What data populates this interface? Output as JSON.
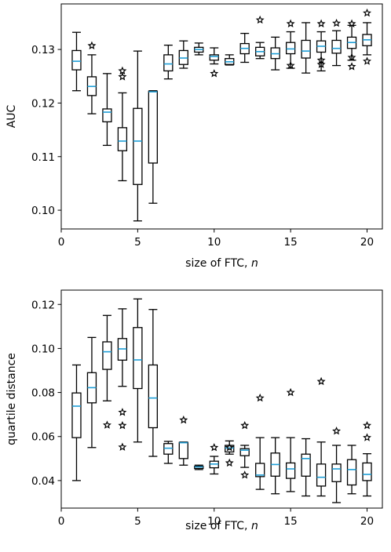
{
  "chart_data": [
    {
      "type": "box",
      "xlabel": "size of FTC, ",
      "xlabel_var": "n",
      "ylabel": "AUC",
      "xlim": [
        0,
        21
      ],
      "ylim": [
        0.0965,
        0.1385
      ],
      "xticks": [
        0,
        5,
        10,
        15,
        20
      ],
      "xticklabels": [
        "0",
        "5",
        "10",
        "15",
        "20"
      ],
      "yticks": [
        0.1,
        0.11,
        0.12,
        0.13
      ],
      "yticklabels": [
        "0.10",
        "0.11",
        "0.12",
        "0.13"
      ],
      "median_color": "#1f9ed6",
      "boxes": [
        {
          "x": 1,
          "whislo": 0.1223,
          "q1": 0.1262,
          "med": 0.1278,
          "q3": 0.1298,
          "whishi": 0.1332,
          "fliers": []
        },
        {
          "x": 2,
          "whislo": 0.118,
          "q1": 0.1214,
          "med": 0.1231,
          "q3": 0.1249,
          "whishi": 0.129,
          "fliers": [
            0.1307
          ]
        },
        {
          "x": 3,
          "whislo": 0.1121,
          "q1": 0.1165,
          "med": 0.1183,
          "q3": 0.1189,
          "whishi": 0.1255,
          "fliers": []
        },
        {
          "x": 4,
          "whislo": 0.1055,
          "q1": 0.1111,
          "med": 0.1129,
          "q3": 0.1154,
          "whishi": 0.1219,
          "fliers": [
            0.1249,
            0.126
          ]
        },
        {
          "x": 5,
          "whislo": 0.098,
          "q1": 0.1048,
          "med": 0.1129,
          "q3": 0.119,
          "whishi": 0.1297,
          "fliers": []
        },
        {
          "x": 6,
          "whislo": 0.1013,
          "q1": 0.1088,
          "med": 0.1221,
          "q3": 0.1222,
          "whishi": 0.1223,
          "fliers": []
        },
        {
          "x": 7,
          "whislo": 0.1245,
          "q1": 0.126,
          "med": 0.1273,
          "q3": 0.129,
          "whishi": 0.1308,
          "fliers": []
        },
        {
          "x": 8,
          "whislo": 0.1265,
          "q1": 0.1272,
          "med": 0.1284,
          "q3": 0.1298,
          "whishi": 0.1316,
          "fliers": []
        },
        {
          "x": 9,
          "whislo": 0.129,
          "q1": 0.1295,
          "med": 0.13,
          "q3": 0.1304,
          "whishi": 0.1312,
          "fliers": []
        },
        {
          "x": 10,
          "whislo": 0.1273,
          "q1": 0.128,
          "med": 0.1287,
          "q3": 0.129,
          "whishi": 0.1303,
          "fliers": [
            0.1255
          ]
        },
        {
          "x": 11,
          "whislo": 0.1271,
          "q1": 0.1272,
          "med": 0.1277,
          "q3": 0.1283,
          "whishi": 0.129,
          "fliers": []
        },
        {
          "x": 12,
          "whislo": 0.1276,
          "q1": 0.1292,
          "med": 0.1302,
          "q3": 0.1311,
          "whishi": 0.133,
          "fliers": []
        },
        {
          "x": 13,
          "whislo": 0.1283,
          "q1": 0.1288,
          "med": 0.1296,
          "q3": 0.1304,
          "whishi": 0.1313,
          "fliers": [
            0.1355
          ]
        },
        {
          "x": 14,
          "whislo": 0.1262,
          "q1": 0.1283,
          "med": 0.1292,
          "q3": 0.1303,
          "whishi": 0.1323,
          "fliers": []
        },
        {
          "x": 15,
          "whislo": 0.1265,
          "q1": 0.1292,
          "med": 0.1301,
          "q3": 0.1313,
          "whishi": 0.1333,
          "fliers": [
            0.1348,
            0.127
          ]
        },
        {
          "x": 16,
          "whislo": 0.1256,
          "q1": 0.1284,
          "med": 0.1297,
          "q3": 0.1317,
          "whishi": 0.135,
          "fliers": []
        },
        {
          "x": 17,
          "whislo": 0.126,
          "q1": 0.1295,
          "med": 0.1306,
          "q3": 0.1316,
          "whishi": 0.1333,
          "fliers": [
            0.1348,
            0.128,
            0.1272
          ]
        },
        {
          "x": 18,
          "whislo": 0.127,
          "q1": 0.1293,
          "med": 0.1302,
          "q3": 0.1317,
          "whishi": 0.1335,
          "fliers": [
            0.1349
          ]
        },
        {
          "x": 19,
          "whislo": 0.128,
          "q1": 0.1302,
          "med": 0.1313,
          "q3": 0.1323,
          "whishi": 0.1345,
          "fliers": [
            0.1348,
            0.1285,
            0.1268
          ]
        },
        {
          "x": 20,
          "whislo": 0.129,
          "q1": 0.1307,
          "med": 0.1318,
          "q3": 0.1328,
          "whishi": 0.135,
          "fliers": [
            0.1368,
            0.1278
          ]
        }
      ]
    },
    {
      "type": "box",
      "xlabel": "size of FTC, ",
      "xlabel_var": "n",
      "ylabel": "quartile distance",
      "xlim": [
        0,
        21
      ],
      "ylim": [
        0.0275,
        0.1265
      ],
      "xticks": [
        0,
        5,
        10,
        15,
        20
      ],
      "xticklabels": [
        "0",
        "5",
        "10",
        "15",
        "20"
      ],
      "yticks": [
        0.04,
        0.06,
        0.08,
        0.1,
        0.12
      ],
      "yticklabels": [
        "0.04",
        "0.06",
        "0.08",
        "0.10",
        "0.12"
      ],
      "median_color": "#1f9ed6",
      "boxes": [
        {
          "x": 1,
          "whislo": 0.04,
          "q1": 0.0595,
          "med": 0.0738,
          "q3": 0.0798,
          "whishi": 0.0925,
          "fliers": []
        },
        {
          "x": 2,
          "whislo": 0.055,
          "q1": 0.0753,
          "med": 0.0822,
          "q3": 0.089,
          "whishi": 0.105,
          "fliers": []
        },
        {
          "x": 3,
          "whislo": 0.0762,
          "q1": 0.0905,
          "med": 0.0985,
          "q3": 0.103,
          "whishi": 0.115,
          "fliers": [
            0.0652
          ]
        },
        {
          "x": 4,
          "whislo": 0.0828,
          "q1": 0.0947,
          "med": 0.0998,
          "q3": 0.1045,
          "whishi": 0.118,
          "fliers": [
            0.071,
            0.065,
            0.0552
          ]
        },
        {
          "x": 5,
          "whislo": 0.0575,
          "q1": 0.0818,
          "med": 0.0948,
          "q3": 0.1095,
          "whishi": 0.1225,
          "fliers": []
        },
        {
          "x": 6,
          "whislo": 0.051,
          "q1": 0.064,
          "med": 0.0775,
          "q3": 0.0925,
          "whishi": 0.1177,
          "fliers": []
        },
        {
          "x": 7,
          "whislo": 0.0478,
          "q1": 0.052,
          "med": 0.0547,
          "q3": 0.0568,
          "whishi": 0.0578,
          "fliers": []
        },
        {
          "x": 8,
          "whislo": 0.047,
          "q1": 0.05,
          "med": 0.0572,
          "q3": 0.0573,
          "whishi": 0.0575,
          "fliers": [
            0.0675
          ]
        },
        {
          "x": 9,
          "whislo": 0.045,
          "q1": 0.0455,
          "med": 0.0462,
          "q3": 0.0465,
          "whishi": 0.047,
          "fliers": []
        },
        {
          "x": 10,
          "whislo": 0.043,
          "q1": 0.0458,
          "med": 0.0475,
          "q3": 0.0488,
          "whishi": 0.051,
          "fliers": [
            0.055
          ]
        },
        {
          "x": 11,
          "whislo": 0.052,
          "q1": 0.053,
          "med": 0.0548,
          "q3": 0.056,
          "whishi": 0.058,
          "fliers": [
            0.048,
            0.055
          ]
        },
        {
          "x": 12,
          "whislo": 0.046,
          "q1": 0.0513,
          "med": 0.0538,
          "q3": 0.0545,
          "whishi": 0.056,
          "fliers": [
            0.065,
            0.0425
          ]
        },
        {
          "x": 13,
          "whislo": 0.036,
          "q1": 0.0418,
          "med": 0.0425,
          "q3": 0.0478,
          "whishi": 0.0595,
          "fliers": [
            0.0775
          ]
        },
        {
          "x": 14,
          "whislo": 0.034,
          "q1": 0.042,
          "med": 0.0473,
          "q3": 0.0525,
          "whishi": 0.0595,
          "fliers": []
        },
        {
          "x": 15,
          "whislo": 0.035,
          "q1": 0.041,
          "med": 0.0453,
          "q3": 0.048,
          "whishi": 0.0595,
          "fliers": [
            0.08
          ]
        },
        {
          "x": 16,
          "whislo": 0.033,
          "q1": 0.042,
          "med": 0.05,
          "q3": 0.052,
          "whishi": 0.059,
          "fliers": []
        },
        {
          "x": 17,
          "whislo": 0.033,
          "q1": 0.0375,
          "med": 0.0415,
          "q3": 0.0475,
          "whishi": 0.0575,
          "fliers": [
            0.085
          ]
        },
        {
          "x": 18,
          "whislo": 0.03,
          "q1": 0.0395,
          "med": 0.0453,
          "q3": 0.0475,
          "whishi": 0.056,
          "fliers": [
            0.0625
          ]
        },
        {
          "x": 19,
          "whislo": 0.034,
          "q1": 0.038,
          "med": 0.045,
          "q3": 0.0495,
          "whishi": 0.056,
          "fliers": []
        },
        {
          "x": 20,
          "whislo": 0.033,
          "q1": 0.04,
          "med": 0.0428,
          "q3": 0.048,
          "whishi": 0.0522,
          "fliers": [
            0.065,
            0.0595
          ]
        }
      ]
    }
  ]
}
